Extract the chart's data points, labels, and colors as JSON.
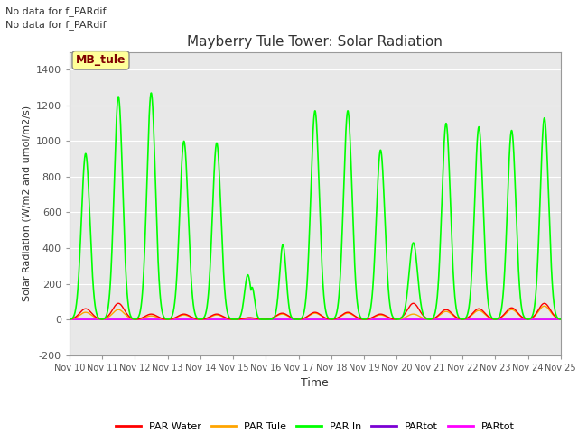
{
  "title": "Mayberry Tule Tower: Solar Radiation",
  "xlabel": "Time",
  "ylabel": "Solar Radiation (W/m2 and umol/m2/s)",
  "ylim": [
    -200,
    1500
  ],
  "xlim": [
    0,
    15
  ],
  "background_color": "#e8e8e8",
  "figure_bg": "#ffffff",
  "annotations": [
    "No data for f_PARdif",
    "No data for f_PARdif"
  ],
  "legend_label": "MB_tule",
  "xtick_labels": [
    "Nov 10",
    "Nov 11",
    "Nov 12",
    "Nov 13",
    "Nov 14",
    "Nov 15",
    "Nov 16",
    "Nov 17",
    "Nov 18",
    "Nov 19",
    "Nov 20",
    "Nov 21",
    "Nov 22",
    "Nov 23",
    "Nov 24",
    "Nov 25"
  ],
  "ytick_labels": [
    -200,
    0,
    200,
    400,
    600,
    800,
    1000,
    1200,
    1400
  ],
  "series_colors": {
    "PAR Water": "#ff0000",
    "PAR Tule": "#ffa500",
    "PAR In": "#00ff00",
    "PARtot_purple": "#8000ff",
    "PARtot_pink": "#ff00ff"
  },
  "legend_entries": [
    {
      "label": "PAR Water",
      "color": "#ff0000"
    },
    {
      "label": "PAR Tule",
      "color": "#ffa500"
    },
    {
      "label": "PAR In",
      "color": "#00ff00"
    },
    {
      "label": "PARtot",
      "color": "#7b00d4"
    },
    {
      "label": "PARtot",
      "color": "#ff00ff"
    }
  ],
  "par_in_peaks": [
    930,
    1250,
    1270,
    1000,
    990,
    250,
    420,
    1170,
    1170,
    950,
    430,
    1100,
    1080,
    1060,
    1130
  ],
  "par_water_peaks": [
    60,
    90,
    30,
    30,
    30,
    10,
    35,
    40,
    40,
    30,
    90,
    55,
    60,
    65,
    90
  ],
  "par_tule_peaks": [
    40,
    55,
    20,
    25,
    25,
    8,
    30,
    35,
    35,
    25,
    30,
    45,
    50,
    55,
    75
  ],
  "par_in_sigma": 0.13,
  "par_small_sigma": 0.18
}
